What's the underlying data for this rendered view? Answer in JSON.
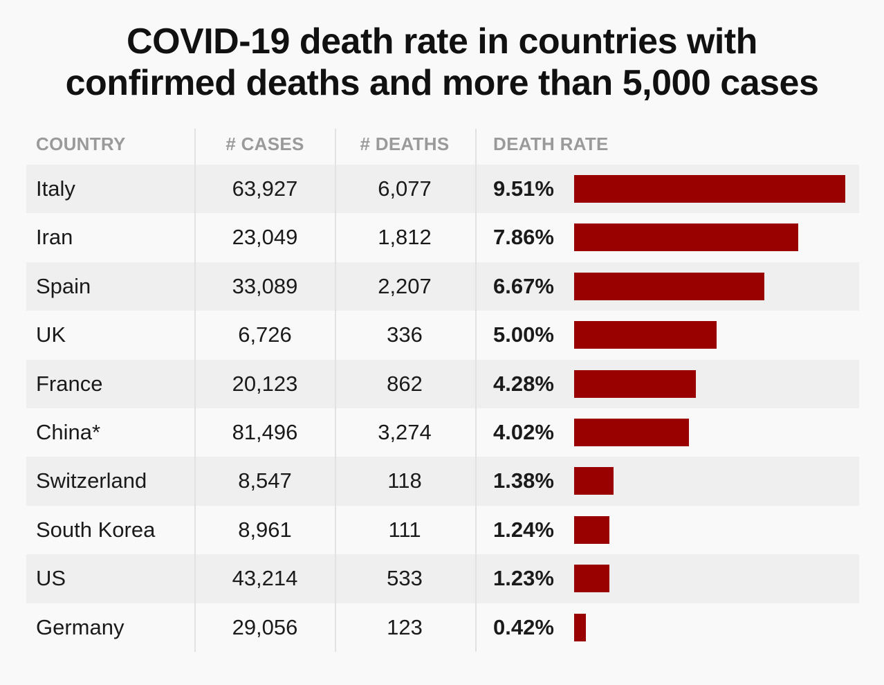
{
  "title_line1": "COVID-19 death rate in countries with",
  "title_line2": "confirmed deaths and more than 5,000 cases",
  "headers": {
    "country": "COUNTRY",
    "cases": "# CASES",
    "deaths": "# DEATHS",
    "rate": "DEATH RATE"
  },
  "colors": {
    "bar": "#990000",
    "header_text": "#9a9a9a",
    "row_shade": "#efefef"
  },
  "rows": [
    {
      "country": "Italy",
      "cases": "63,927",
      "deaths": "6,077",
      "rate_label": "9.51%"
    },
    {
      "country": "Iran",
      "cases": "23,049",
      "deaths": "1,812",
      "rate_label": "7.86%"
    },
    {
      "country": "Spain",
      "cases": "33,089",
      "deaths": "2,207",
      "rate_label": "6.67%"
    },
    {
      "country": "UK",
      "cases": "6,726",
      "deaths": "336",
      "rate_label": "5.00%"
    },
    {
      "country": "France",
      "cases": "20,123",
      "deaths": "862",
      "rate_label": "4.28%"
    },
    {
      "country": "China*",
      "cases": "81,496",
      "deaths": "3,274",
      "rate_label": "4.02%"
    },
    {
      "country": "Switzerland",
      "cases": "8,547",
      "deaths": "118",
      "rate_label": "1.38%"
    },
    {
      "country": "South Korea",
      "cases": "8,961",
      "deaths": "111",
      "rate_label": "1.24%"
    },
    {
      "country": "US",
      "cases": "43,214",
      "deaths": "533",
      "rate_label": "1.23%"
    },
    {
      "country": "Germany",
      "cases": "29,056",
      "deaths": "123",
      "rate_label": "0.42%"
    }
  ],
  "chart_data": {
    "type": "bar",
    "orientation": "horizontal",
    "title": "COVID-19 death rate in countries with confirmed deaths and more than 5,000 cases",
    "categories": [
      "Italy",
      "Iran",
      "Spain",
      "UK",
      "France",
      "China*",
      "Switzerland",
      "South Korea",
      "US",
      "Germany"
    ],
    "values": [
      9.51,
      7.86,
      6.67,
      5.0,
      4.28,
      4.02,
      1.38,
      1.24,
      1.23,
      0.42
    ],
    "xlim": [
      0,
      9.51
    ],
    "grid": false,
    "legend": "none"
  }
}
